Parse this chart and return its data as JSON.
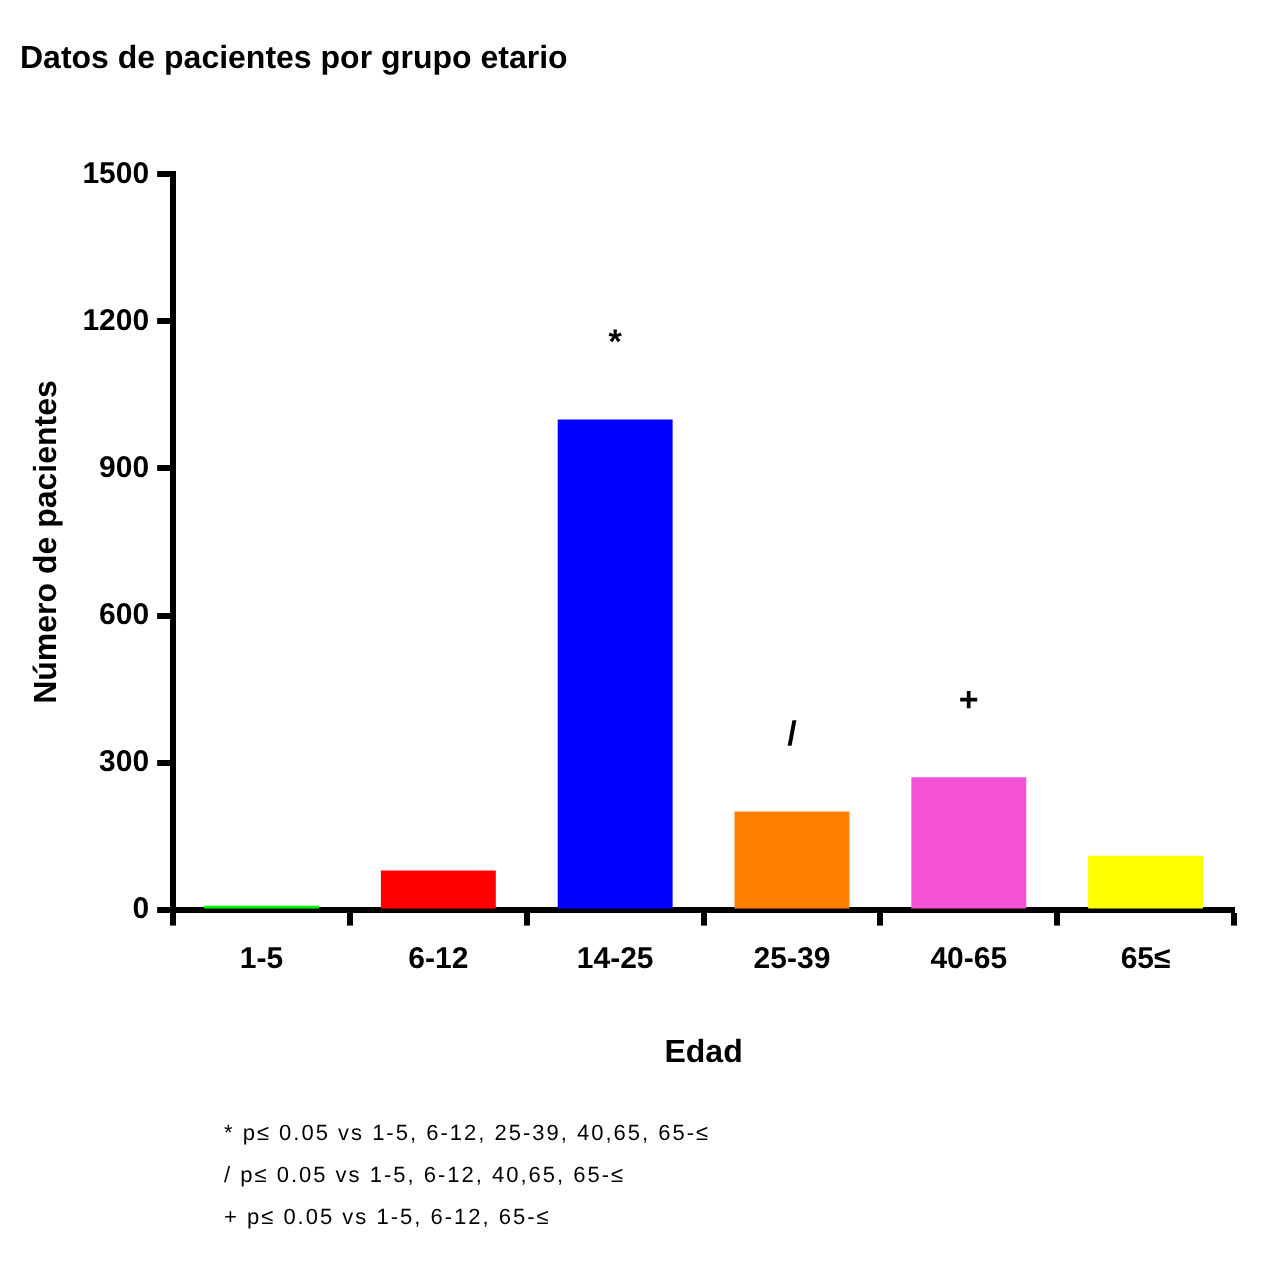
{
  "chart_data": {
    "type": "bar",
    "title": "Datos de pacientes por grupo etario",
    "xlabel": "Edad",
    "ylabel": "Número de pacientes",
    "categories": [
      "1-5",
      "6-12",
      "14-25",
      "25-39",
      "40-65",
      "65≤"
    ],
    "values": [
      8,
      80,
      1000,
      200,
      270,
      110
    ],
    "colors": [
      "#00ff00",
      "#ff0000",
      "#0000ff",
      "#ff8000",
      "#f550d6",
      "#ffff00"
    ],
    "ylim": [
      0,
      1500
    ],
    "yticks": [
      0,
      300,
      600,
      900,
      1200,
      1500
    ],
    "grid": false,
    "legend": false,
    "annotations": [
      {
        "text": "*",
        "x": "14-25",
        "y": 1000
      },
      {
        "text": "/",
        "x": "25-39",
        "y": 200
      },
      {
        "text": "+",
        "x": "40-65",
        "y": 270
      },
      "* p≤ 0.05 vs 1-5, 6-12, 25-39, 40,65, 65-≤",
      "/ p≤ 0.05 vs 1-5, 6-12, 40,65, 65-≤",
      "+ p≤ 0.05 vs 1-5, 6-12, 65-≤"
    ]
  }
}
